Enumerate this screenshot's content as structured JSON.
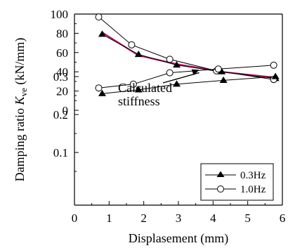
{
  "chart_data": {
    "type": "line",
    "xlabel": "Displasement (mm)",
    "ylabel_main": "Damping ratio ",
    "ylabel_sym": "K",
    "ylabel_sub": "ve",
    "ylabel_unit": " (kN/mm)",
    "xlim": [
      0,
      6
    ],
    "x_ticks": [
      "0",
      "1",
      "2",
      "3",
      "4",
      "5",
      "6"
    ],
    "upper_panel": {
      "ylim": [
        0,
        100
      ],
      "y_ticks": [
        "0",
        "20",
        "40",
        "60",
        "80",
        "100"
      ],
      "series": [
        {
          "name": "0.3Hz",
          "marker": "filled-triangle",
          "x": [
            0.8,
            1.85,
            2.95,
            4.25,
            5.8
          ],
          "y": [
            79,
            58,
            47,
            40,
            33
          ]
        },
        {
          "name": "1.0Hz",
          "marker": "open-circle",
          "x": [
            0.7,
            1.65,
            2.75,
            4.1,
            5.75
          ],
          "y": [
            97,
            68,
            53,
            41,
            32
          ]
        }
      ],
      "calculated_stiffness": {
        "color": "#c0146e",
        "x": [
          0.8,
          1.85,
          2.95,
          4.25,
          5.8
        ],
        "y": [
          81,
          57,
          48,
          40,
          34
        ]
      },
      "annotation": {
        "line1": "Calculated",
        "line2": "stiffness",
        "arrow_to": [
          3.6,
          42
        ]
      }
    },
    "lower_panel": {
      "ylim": [
        0,
        0.37
      ],
      "y_ticks": [
        "0.1",
        "0.2",
        "0.3"
      ],
      "series": [
        {
          "name": "0.3Hz",
          "marker": "filled-triangle",
          "x": [
            0.8,
            1.85,
            2.95,
            4.3,
            5.8
          ],
          "y": [
            0.255,
            0.265,
            0.28,
            0.29,
            0.3
          ]
        },
        {
          "name": "1.0Hz",
          "marker": "open-circle",
          "x": [
            0.7,
            1.7,
            2.75,
            4.15,
            5.75
          ],
          "y": [
            0.27,
            0.28,
            0.31,
            0.32,
            0.33
          ]
        }
      ]
    },
    "legend": {
      "position": "bottom-right",
      "entries": [
        {
          "label": "0.3Hz",
          "marker": "filled-triangle"
        },
        {
          "label": "1.0Hz",
          "marker": "open-circle"
        }
      ]
    }
  }
}
